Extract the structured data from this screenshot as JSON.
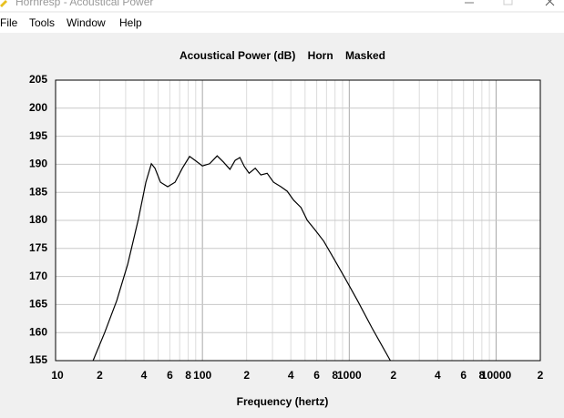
{
  "window": {
    "title": "Hornresp - Acoustical Power",
    "menu": [
      "File",
      "Tools",
      "Window",
      "Help"
    ]
  },
  "chart_data": {
    "type": "line",
    "title": "Acoustical Power (dB)    Horn    Masked",
    "x_label": "Frequency (hertz)",
    "x_scale": "log",
    "xlim": [
      10,
      20000
    ],
    "ylim": [
      155,
      205
    ],
    "yticks": [
      155,
      160,
      165,
      170,
      175,
      180,
      185,
      190,
      195,
      200,
      205
    ],
    "xticks": [
      10,
      {
        "value": 20,
        "label": "2"
      },
      {
        "value": 40,
        "label": "4"
      },
      {
        "value": 60,
        "label": "6"
      },
      {
        "value": 80,
        "label": "8"
      },
      100,
      {
        "value": 200,
        "label": "2"
      },
      {
        "value": 400,
        "label": "4"
      },
      {
        "value": 600,
        "label": "6"
      },
      {
        "value": 800,
        "label": "8"
      },
      1000,
      {
        "value": 2000,
        "label": "2"
      },
      {
        "value": 4000,
        "label": "4"
      },
      {
        "value": 6000,
        "label": "6"
      },
      {
        "value": 8000,
        "label": "8"
      },
      10000,
      {
        "value": 20000,
        "label": "2"
      }
    ],
    "x_minor_ticks": [
      30,
      50,
      70,
      90,
      300,
      500,
      700,
      900,
      3000,
      5000,
      7000,
      9000
    ],
    "grid": true,
    "series": [
      {
        "color": "#000000",
        "x": [
          18,
          21.6,
          26.1,
          31,
          36.7,
          41.2,
          44.9,
          47.5,
          51.8,
          58,
          65.1,
          73,
          81.8,
          89.2,
          100,
          112,
          126,
          139,
          154,
          167,
          180,
          193,
          208,
          229,
          250,
          276,
          305,
          342,
          378,
          418,
          469,
          518,
          581,
          670,
          773,
          931,
          1138,
          1430,
          1905
        ],
        "values": [
          155,
          160,
          165.7,
          172.2,
          180.3,
          186.8,
          190.1,
          189.3,
          186.8,
          186,
          186.8,
          189.3,
          191.4,
          190.7,
          189.7,
          190.1,
          191.5,
          190.4,
          189.1,
          190.7,
          191.2,
          189.6,
          188.4,
          189.3,
          188.1,
          188.4,
          186.8,
          186,
          185.2,
          183.6,
          182.3,
          180,
          178.4,
          176.3,
          173.5,
          169.8,
          165.7,
          160.8,
          155
        ]
      }
    ]
  }
}
